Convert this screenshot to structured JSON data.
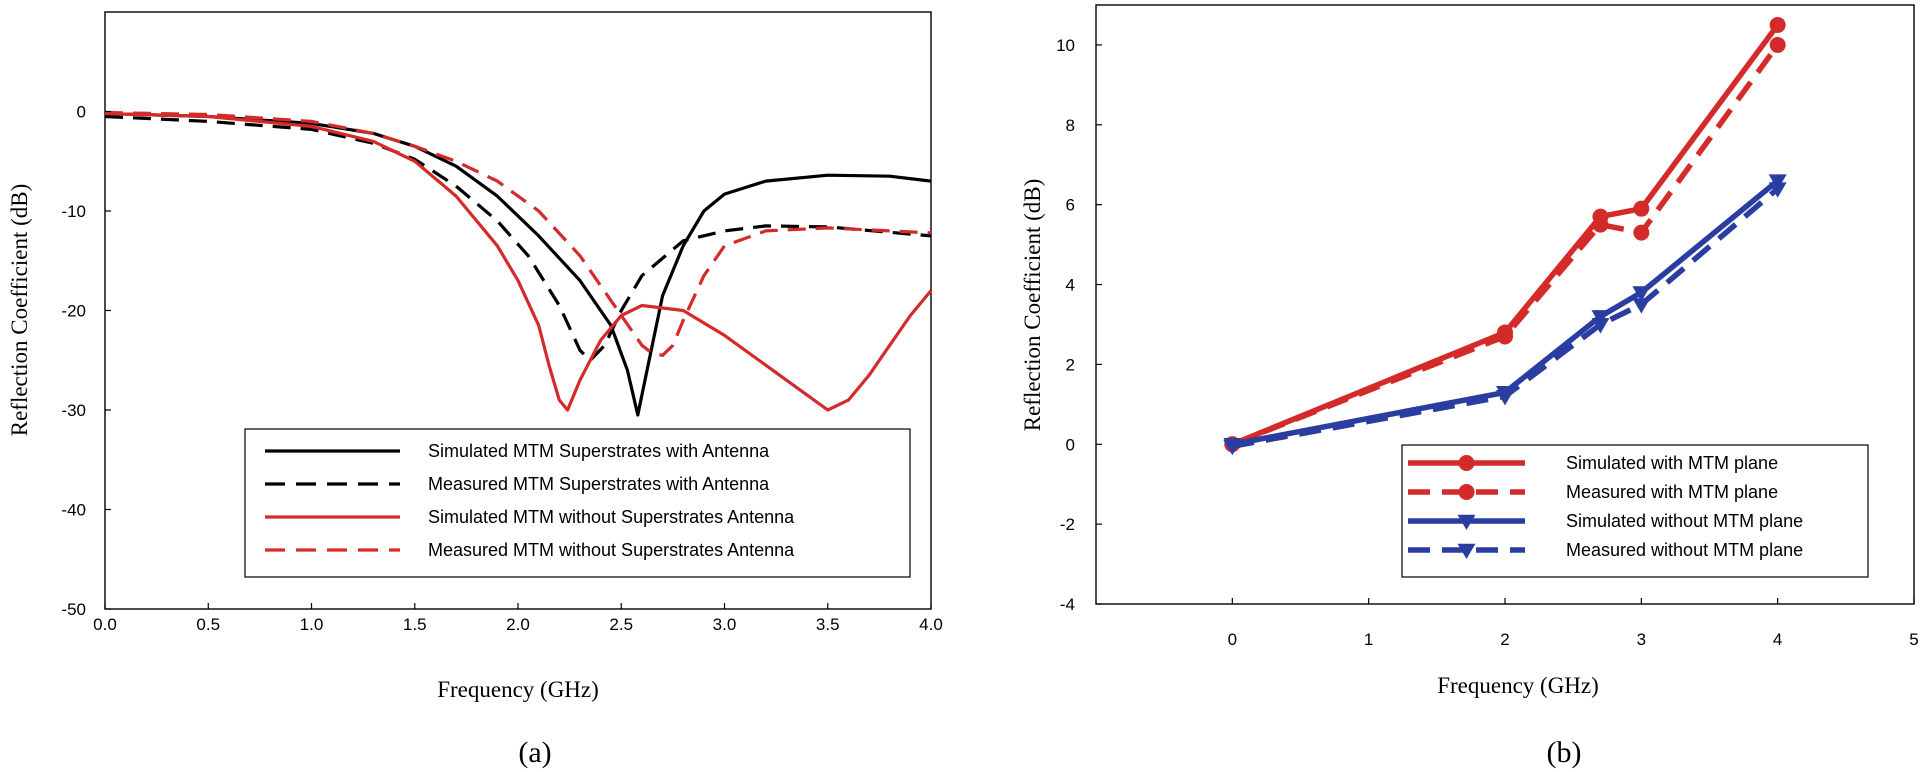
{
  "colors": {
    "black": "#000000",
    "red": "#d42a2a",
    "blue": "#2a3da0"
  },
  "chart_data": [
    {
      "type": "line",
      "panel_label": "(a)",
      "xlabel": "Frequency (GHz)",
      "ylabel": "Reflection Coefficient (dB)",
      "xlim": [
        0.0,
        4.0
      ],
      "ylim": [
        -50,
        10
      ],
      "xticks": [
        0.0,
        0.5,
        1.0,
        1.5,
        2.0,
        2.5,
        3.0,
        3.5,
        4.0
      ],
      "xtick_labels": [
        "0.0",
        "0.5",
        "1.0",
        "1.5",
        "2.0",
        "2.5",
        "3.0",
        "3.5",
        "4.0"
      ],
      "yticks": [
        0,
        -10,
        -20,
        -30,
        -40,
        -50
      ],
      "ytick_labels": [
        "0",
        "-10",
        "-20",
        "-30",
        "-40",
        "-50"
      ],
      "legend_position": "bottom-right",
      "series": [
        {
          "name": "Simulated MTM Superstrates with Antenna",
          "color": "black",
          "dash": "solid",
          "x": [
            0.0,
            0.5,
            1.0,
            1.3,
            1.5,
            1.7,
            1.9,
            2.1,
            2.3,
            2.45,
            2.53,
            2.58,
            2.63,
            2.7,
            2.8,
            2.9,
            3.0,
            3.2,
            3.5,
            3.8,
            4.0
          ],
          "y": [
            -0.2,
            -0.5,
            -1.2,
            -2.2,
            -3.5,
            -5.5,
            -8.5,
            -12.5,
            -17.0,
            -21.5,
            -26.0,
            -30.5,
            -25.5,
            -18.5,
            -13.5,
            -10.0,
            -8.3,
            -7.0,
            -6.4,
            -6.5,
            -7.0
          ]
        },
        {
          "name": "Measured MTM Superstrates with Antenna",
          "color": "black",
          "dash": "dashed",
          "x": [
            0.0,
            0.5,
            1.0,
            1.3,
            1.5,
            1.7,
            1.9,
            2.05,
            2.2,
            2.3,
            2.35,
            2.42,
            2.5,
            2.6,
            2.8,
            3.0,
            3.2,
            3.5,
            4.0
          ],
          "y": [
            -0.5,
            -1.0,
            -1.8,
            -3.2,
            -4.8,
            -7.5,
            -11.0,
            -14.5,
            -19.5,
            -24.0,
            -25.0,
            -23.5,
            -20.0,
            -16.5,
            -13.0,
            -12.0,
            -11.5,
            -11.6,
            -12.5
          ]
        },
        {
          "name": "Simulated MTM without Superstrates Antenna",
          "color": "red",
          "dash": "solid",
          "x": [
            0.0,
            0.5,
            1.0,
            1.3,
            1.5,
            1.7,
            1.9,
            2.0,
            2.1,
            2.15,
            2.2,
            2.24,
            2.3,
            2.4,
            2.5,
            2.6,
            2.8,
            3.0,
            3.2,
            3.4,
            3.5,
            3.6,
            3.7,
            3.8,
            3.9,
            4.0
          ],
          "y": [
            -0.2,
            -0.5,
            -1.5,
            -3.0,
            -5.0,
            -8.5,
            -13.5,
            -17.0,
            -21.5,
            -25.5,
            -29.0,
            -30.0,
            -27.0,
            -23.0,
            -20.5,
            -19.5,
            -20.0,
            -22.5,
            -25.5,
            -28.5,
            -30.0,
            -29.0,
            -26.5,
            -23.5,
            -20.5,
            -18.0
          ]
        },
        {
          "name": "Measured MTM without Superstrates Antenna",
          "color": "red",
          "dash": "dashed",
          "x": [
            0.0,
            0.5,
            1.0,
            1.3,
            1.5,
            1.7,
            1.9,
            2.1,
            2.3,
            2.45,
            2.55,
            2.6,
            2.65,
            2.7,
            2.75,
            2.8,
            2.9,
            3.0,
            3.2,
            3.5,
            4.0
          ],
          "y": [
            -0.1,
            -0.3,
            -1.0,
            -2.2,
            -3.5,
            -5.0,
            -7.0,
            -10.0,
            -14.5,
            -19.0,
            -22.0,
            -23.5,
            -24.3,
            -24.5,
            -23.5,
            -21.0,
            -16.5,
            -13.5,
            -12.0,
            -11.7,
            -12.2
          ]
        }
      ]
    },
    {
      "type": "line",
      "panel_label": "(b)",
      "xlabel": "Frequency (GHz)",
      "ylabel": "Reflection Coefficient (dB)",
      "xlim": [
        -1,
        5
      ],
      "ylim": [
        -4,
        11
      ],
      "xticks": [
        0,
        1,
        2,
        3,
        4,
        5
      ],
      "xtick_labels": [
        "0",
        "1",
        "2",
        "3",
        "4",
        "5"
      ],
      "yticks": [
        10,
        8,
        6,
        4,
        2,
        0,
        -2,
        -4
      ],
      "ytick_labels": [
        "10",
        "8",
        "6",
        "4",
        "2",
        "0",
        "-2",
        "-4"
      ],
      "legend_position": "bottom-right",
      "series": [
        {
          "name": "Simulated with MTM plane",
          "color": "red",
          "dash": "solid",
          "marker": "circle",
          "x": [
            0,
            2,
            2.7,
            3,
            4
          ],
          "y": [
            0.0,
            2.8,
            5.7,
            5.9,
            10.5
          ]
        },
        {
          "name": "Measured with MTM plane",
          "color": "red",
          "dash": "dashed",
          "marker": "circle",
          "x": [
            0,
            2,
            2.7,
            3,
            4
          ],
          "y": [
            0.0,
            2.7,
            5.5,
            5.3,
            10.0
          ]
        },
        {
          "name": "Simulated without MTM plane",
          "color": "blue",
          "dash": "solid",
          "marker": "triangle-down",
          "x": [
            0,
            2,
            2.7,
            3,
            4
          ],
          "y": [
            0.0,
            1.3,
            3.2,
            3.8,
            6.6
          ]
        },
        {
          "name": "Measured without MTM plane",
          "color": "blue",
          "dash": "dashed",
          "marker": "triangle-down",
          "x": [
            0,
            2,
            2.7,
            3,
            4
          ],
          "y": [
            -0.05,
            1.2,
            3.0,
            3.5,
            6.4
          ]
        }
      ]
    }
  ]
}
